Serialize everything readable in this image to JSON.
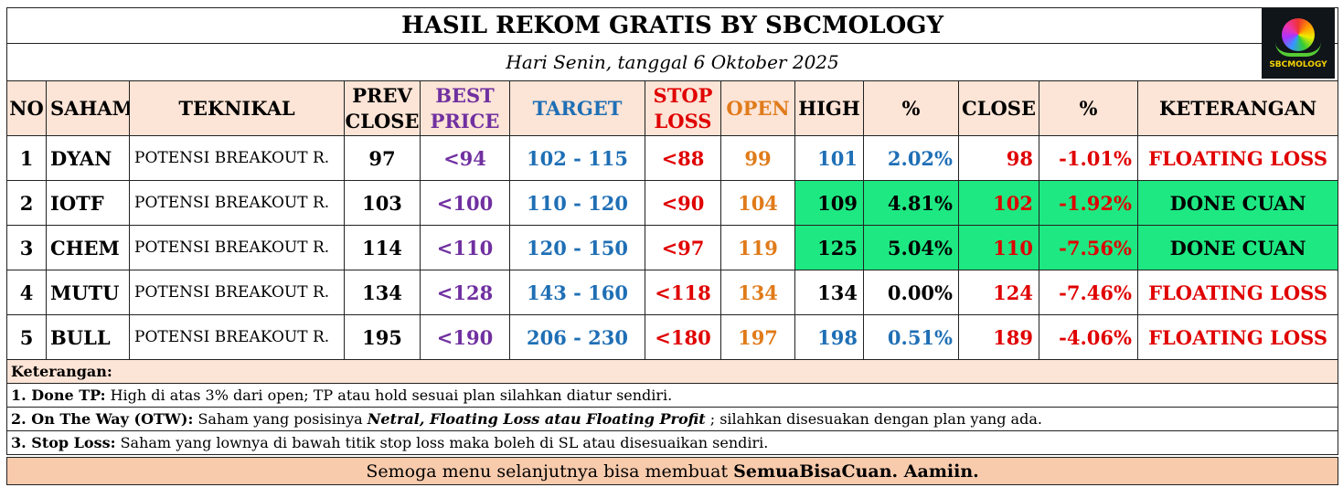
{
  "title": "HASIL REKOM GRATIS BY SBCMOLOGY",
  "subtitle": "Hari Senin, tanggal 6 Oktober 2025",
  "logo_text": "SBCMOLOGY",
  "headers": {
    "no": "NO",
    "saham": "SAHAM",
    "teknikal": "TEKNIKAL",
    "prev1": "PREV",
    "prev2": "CLOSE",
    "best1": "BEST",
    "best2": "PRICE",
    "target": "TARGET",
    "stop1": "STOP",
    "stop2": "LOSS",
    "open": "OPEN",
    "high": "HIGH",
    "pct1": "%",
    "close": "CLOSE",
    "pct2": "%",
    "ket": "KETERANGAN"
  },
  "colors": {
    "best": "#7030a0",
    "target": "#1f6fb5",
    "stop": "#e00000",
    "open": "#e07b1a",
    "blue": "#1f6fb5",
    "red": "#e00000",
    "green_bg": "#1ee882"
  },
  "rows": [
    {
      "no": "1",
      "saham": "DYAN",
      "teknikal": "POTENSI BREAKOUT R.",
      "prev": "97",
      "best": "<94",
      "target": "102 - 115",
      "stop": "<88",
      "open": "99",
      "high": "101",
      "pct_high": "2.02%",
      "close": "98",
      "pct_close": "-1.01%",
      "ket": "FLOATING LOSS"
    },
    {
      "no": "2",
      "saham": "IOTF",
      "teknikal": "POTENSI BREAKOUT R.",
      "prev": "103",
      "best": "<100",
      "target": "110 - 120",
      "stop": "<90",
      "open": "104",
      "high": "109",
      "pct_high": "4.81%",
      "close": "102",
      "pct_close": "-1.92%",
      "ket": "DONE CUAN"
    },
    {
      "no": "3",
      "saham": "CHEM",
      "teknikal": "POTENSI BREAKOUT R.",
      "prev": "114",
      "best": "<110",
      "target": "120 - 150",
      "stop": "<97",
      "open": "119",
      "high": "125",
      "pct_high": "5.04%",
      "close": "110",
      "pct_close": "-7.56%",
      "ket": "DONE CUAN"
    },
    {
      "no": "4",
      "saham": "MUTU",
      "teknikal": "POTENSI BREAKOUT R.",
      "prev": "134",
      "best": "<128",
      "target": "143 - 160",
      "stop": "<118",
      "open": "134",
      "high": "134",
      "pct_high": "0.00%",
      "close": "124",
      "pct_close": "-7.46%",
      "ket": "FLOATING LOSS"
    },
    {
      "no": "5",
      "saham": "BULL",
      "teknikal": "POTENSI BREAKOUT R.",
      "prev": "195",
      "best": "<190",
      "target": "206 - 230",
      "stop": "<180",
      "open": "197",
      "high": "198",
      "pct_high": "0.51%",
      "close": "189",
      "pct_close": "-4.06%",
      "ket": "FLOATING LOSS"
    }
  ],
  "notes": {
    "heading": "Keterangan:",
    "n1_label": "1. Done TP:",
    "n1_text": " High di atas 3% dari open; TP atau hold sesuai plan silahkan diatur sendiri.",
    "n2_label": "2. On The Way (OTW):",
    "n2_text_a": " Saham yang posisinya ",
    "n2_em": "Netral, Floating Loss atau Floating Profit",
    "n2_text_b": " ; silahkan disesuakan dengan plan yang ada.",
    "n3_label": "3. Stop Loss:",
    "n3_text": " Saham yang lownya di bawah titik stop loss maka boleh di SL atau disesuaikan sendiri."
  },
  "footer": {
    "text": "Semoga menu selanjutnya bisa membuat ",
    "bold": "SemuaBisaCuan. Aamiin."
  }
}
